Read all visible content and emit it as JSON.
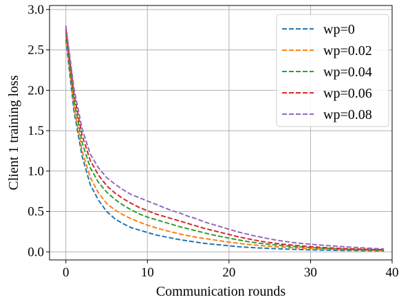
{
  "chart_data": {
    "type": "line",
    "title": "",
    "xlabel": "Communication rounds",
    "ylabel": "Client 1 training loss",
    "xlim": [
      -2,
      40
    ],
    "ylim": [
      -0.1,
      3.05
    ],
    "xticks": [
      0,
      10,
      20,
      30,
      40
    ],
    "xtick_labels": [
      "0",
      "10",
      "20",
      "30",
      "40"
    ],
    "yticks": [
      0.0,
      0.5,
      1.0,
      1.5,
      2.0,
      2.5,
      3.0
    ],
    "ytick_labels": [
      "0.0",
      "0.5",
      "1.0",
      "1.5",
      "2.0",
      "2.5",
      "3.0"
    ],
    "grid": true,
    "legend_position": "top-right",
    "line_style": "dashed",
    "x": [
      0,
      1,
      2,
      3,
      4,
      5,
      6,
      7,
      8,
      9,
      10,
      11,
      12,
      13,
      14,
      15,
      16,
      17,
      18,
      19,
      20,
      21,
      22,
      23,
      24,
      25,
      26,
      27,
      28,
      29,
      30,
      31,
      32,
      33,
      34,
      35,
      36,
      37,
      38,
      39
    ],
    "series": [
      {
        "name": "wp=0",
        "color": "#1f77b4",
        "values": [
          2.63,
          1.74,
          1.18,
          0.83,
          0.64,
          0.5,
          0.41,
          0.35,
          0.3,
          0.27,
          0.24,
          0.21,
          0.19,
          0.17,
          0.15,
          0.135,
          0.12,
          0.105,
          0.095,
          0.085,
          0.075,
          0.065,
          0.058,
          0.052,
          0.047,
          0.042,
          0.038,
          0.034,
          0.031,
          0.028,
          0.025,
          0.023,
          0.021,
          0.019,
          0.017,
          0.016,
          0.015,
          0.014,
          0.013,
          0.012
        ]
      },
      {
        "name": "wp=0.02",
        "color": "#ff7f0e",
        "values": [
          2.68,
          1.8,
          1.25,
          0.92,
          0.73,
          0.6,
          0.52,
          0.46,
          0.41,
          0.37,
          0.33,
          0.3,
          0.27,
          0.245,
          0.22,
          0.2,
          0.18,
          0.165,
          0.15,
          0.135,
          0.12,
          0.108,
          0.096,
          0.086,
          0.077,
          0.069,
          0.062,
          0.056,
          0.051,
          0.046,
          0.042,
          0.038,
          0.034,
          0.031,
          0.028,
          0.025,
          0.023,
          0.021,
          0.019,
          0.017
        ]
      },
      {
        "name": "wp=0.04",
        "color": "#2ca02c",
        "values": [
          2.72,
          1.88,
          1.35,
          1.04,
          0.86,
          0.74,
          0.65,
          0.58,
          0.52,
          0.47,
          0.43,
          0.4,
          0.37,
          0.34,
          0.31,
          0.285,
          0.26,
          0.235,
          0.21,
          0.19,
          0.17,
          0.15,
          0.132,
          0.117,
          0.104,
          0.093,
          0.083,
          0.074,
          0.066,
          0.059,
          0.053,
          0.048,
          0.043,
          0.039,
          0.035,
          0.032,
          0.029,
          0.026,
          0.024,
          0.022
        ]
      },
      {
        "name": "wp=0.06",
        "color": "#d62728",
        "values": [
          2.76,
          1.95,
          1.44,
          1.13,
          0.95,
          0.82,
          0.73,
          0.66,
          0.6,
          0.55,
          0.51,
          0.47,
          0.44,
          0.41,
          0.38,
          0.35,
          0.32,
          0.29,
          0.265,
          0.24,
          0.215,
          0.19,
          0.168,
          0.148,
          0.13,
          0.115,
          0.102,
          0.091,
          0.081,
          0.072,
          0.064,
          0.057,
          0.051,
          0.046,
          0.041,
          0.037,
          0.034,
          0.031,
          0.028,
          0.026
        ]
      },
      {
        "name": "wp=0.08",
        "color": "#9467bd",
        "values": [
          2.8,
          2.02,
          1.52,
          1.21,
          1.04,
          0.92,
          0.84,
          0.77,
          0.71,
          0.67,
          0.63,
          0.59,
          0.55,
          0.51,
          0.48,
          0.44,
          0.41,
          0.37,
          0.34,
          0.31,
          0.28,
          0.25,
          0.225,
          0.2,
          0.18,
          0.16,
          0.142,
          0.127,
          0.114,
          0.103,
          0.094,
          0.086,
          0.078,
          0.071,
          0.064,
          0.058,
          0.052,
          0.046,
          0.041,
          0.036
        ]
      }
    ]
  }
}
